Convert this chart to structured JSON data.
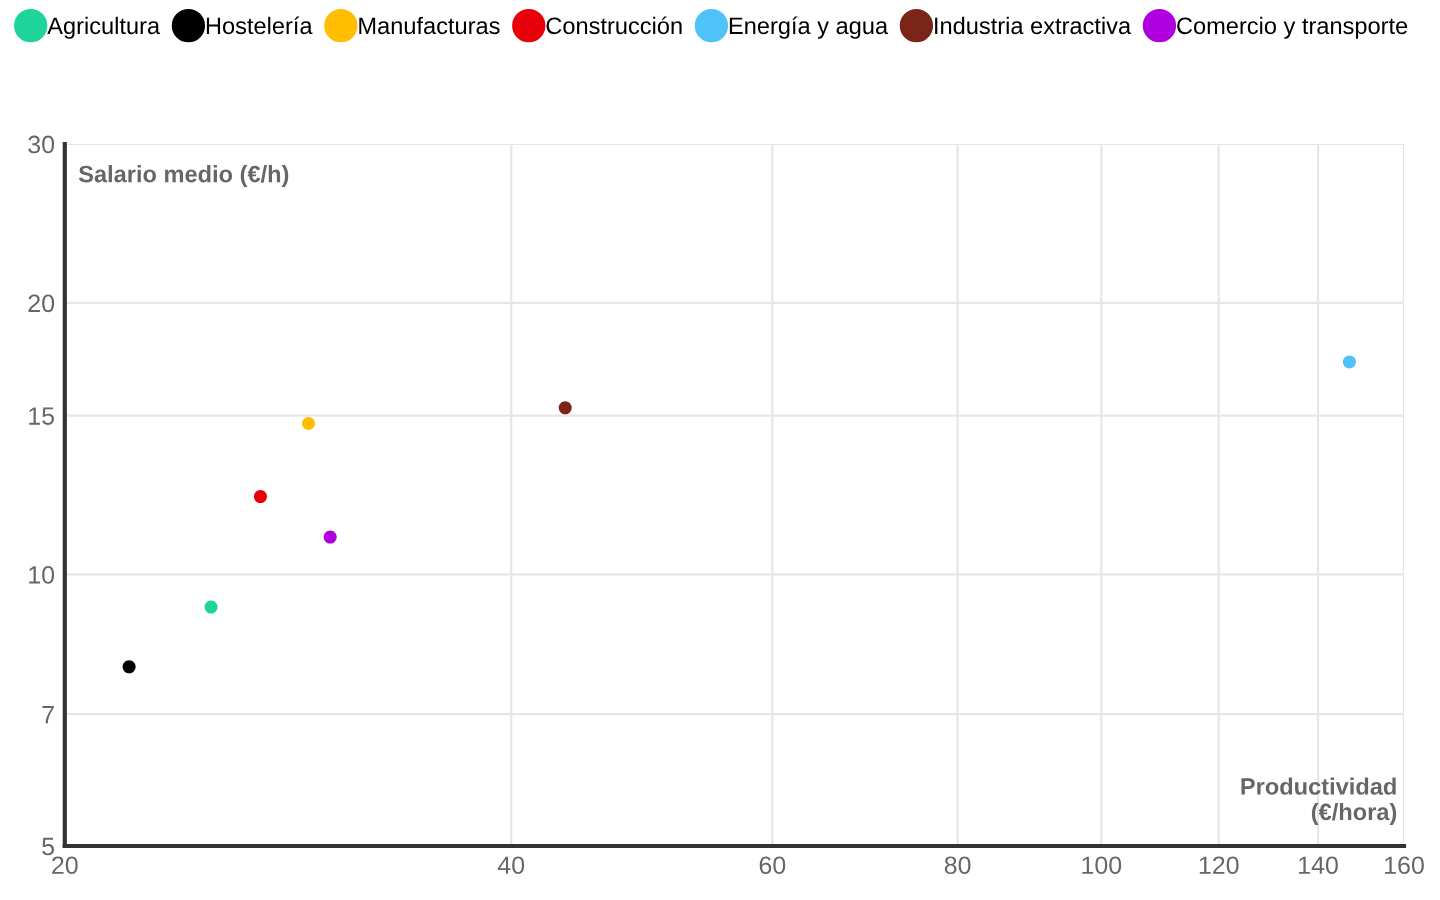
{
  "chart_data": {
    "type": "scatter",
    "xlabel": "Productividad\n(€/hora)",
    "ylabel": "Salario medio (€/h)",
    "log": "xy",
    "xlim": [
      20,
      160
    ],
    "xticks": [
      20,
      40,
      60,
      80,
      100,
      120,
      140,
      160
    ],
    "ylim": [
      5,
      30
    ],
    "yticks": [
      5,
      7,
      10,
      15,
      20,
      30
    ],
    "grid": true,
    "legend": "top",
    "marker": "circle",
    "series": [
      {
        "name": "Agricultura",
        "color": "#1fd49a",
        "x": [
          25.1
        ],
        "values": [
          9.2
        ]
      },
      {
        "name": "Hostelería",
        "color": "#000000",
        "x": [
          22.1
        ],
        "values": [
          7.9
        ]
      },
      {
        "name": "Manufacturas",
        "color": "#ffbf00",
        "x": [
          29.2
        ],
        "values": [
          14.7
        ]
      },
      {
        "name": "Construcción",
        "color": "#e8000b",
        "x": [
          27.1
        ],
        "values": [
          12.2
        ]
      },
      {
        "name": "Energía y agua",
        "color": "#4fc3f7",
        "x": [
          147
        ],
        "values": [
          17.2
        ]
      },
      {
        "name": "Industria extractiva",
        "color": "#7b2418",
        "x": [
          43.5
        ],
        "values": [
          15.3
        ]
      },
      {
        "name": "Comercio y transporte",
        "color": "#b000e0",
        "x": [
          30.2
        ],
        "values": [
          11.0
        ]
      }
    ]
  }
}
